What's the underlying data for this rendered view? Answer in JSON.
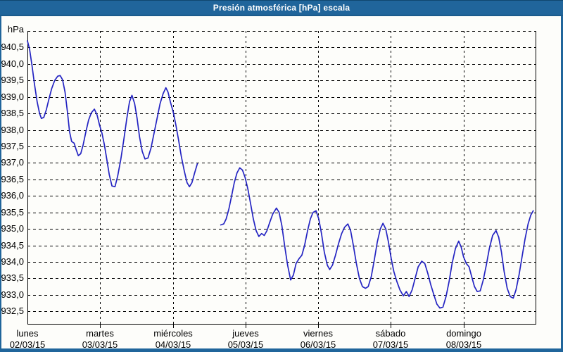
{
  "window": {
    "title": "Presión atmosférica [hPa] escala"
  },
  "colors": {
    "frame_blue": "#20659b",
    "frame_dark_blue": "#10476f",
    "panel_bg": "#fdfdfa",
    "line_blue": "#2424c2",
    "grid_black": "#000000",
    "label_black": "#000000",
    "title_white": "#ffffff"
  },
  "chart_data": {
    "type": "line",
    "title": "Presión atmosférica [hPa] escala",
    "y_unit_label": "hPa",
    "ylabel": "",
    "xlabel": "",
    "decimal_separator": ",",
    "ylim": [
      932.1,
      941.0
    ],
    "ytick_step": 0.5,
    "ytick_labels": [
      "940,5",
      "940,0",
      "939,5",
      "939,0",
      "938,5",
      "938,0",
      "937,5",
      "937,0",
      "936,5",
      "936,0",
      "935,5",
      "935,0",
      "934,5",
      "934,0",
      "933,5",
      "933,0",
      "932,5"
    ],
    "ytick_values": [
      940.5,
      940.0,
      939.5,
      939.0,
      938.5,
      938.0,
      937.5,
      937.0,
      936.5,
      936.0,
      935.5,
      935.0,
      934.5,
      934.0,
      933.5,
      933.0,
      932.5
    ],
    "top_gridline_value": 941.0,
    "grid": "dashed",
    "legend_position": "none",
    "x_total_hours": 168,
    "x_days": [
      {
        "name": "lunes",
        "date": "02/03/15",
        "hour": 0
      },
      {
        "name": "martes",
        "date": "03/03/15",
        "hour": 24
      },
      {
        "name": "miércoles",
        "date": "04/03/15",
        "hour": 48
      },
      {
        "name": "jueves",
        "date": "05/03/15",
        "hour": 72
      },
      {
        "name": "viernes",
        "date": "06/03/15",
        "hour": 96
      },
      {
        "name": "sábado",
        "date": "07/03/15",
        "hour": 120
      },
      {
        "name": "domingo",
        "date": "08/03/15",
        "hour": 144
      }
    ],
    "series": [
      {
        "name": "Presión atmosférica [hPa]",
        "color": "#2424c2",
        "gap_note": "data gap between hour 56 and hour 64 (Wed evening to early Thu)",
        "segments": [
          [
            [
              0,
              940.7
            ],
            [
              0.7,
              940.45
            ],
            [
              1.5,
              939.95
            ],
            [
              2.3,
              939.4
            ],
            [
              3.2,
              938.85
            ],
            [
              4,
              938.5
            ],
            [
              4.6,
              938.35
            ],
            [
              5.4,
              938.38
            ],
            [
              6.2,
              938.6
            ],
            [
              7,
              938.9
            ],
            [
              8,
              939.25
            ],
            [
              9,
              939.5
            ],
            [
              10,
              939.63
            ],
            [
              10.8,
              939.65
            ],
            [
              11.6,
              939.52
            ],
            [
              12.4,
              939.15
            ],
            [
              13.2,
              938.55
            ],
            [
              13.9,
              937.95
            ],
            [
              14.6,
              937.65
            ],
            [
              15.4,
              937.6
            ],
            [
              16.1,
              937.4
            ],
            [
              16.8,
              937.22
            ],
            [
              17.6,
              937.28
            ],
            [
              18.4,
              937.55
            ],
            [
              19.3,
              937.95
            ],
            [
              20.2,
              938.3
            ],
            [
              21.1,
              938.52
            ],
            [
              22.1,
              938.63
            ],
            [
              23,
              938.45
            ],
            [
              23.8,
              938.15
            ],
            [
              24.6,
              937.9
            ],
            [
              25.4,
              937.55
            ],
            [
              26.2,
              937.1
            ],
            [
              27,
              936.65
            ],
            [
              27.9,
              936.3
            ],
            [
              28.9,
              936.28
            ],
            [
              29.8,
              936.6
            ],
            [
              30.8,
              937.1
            ],
            [
              31.8,
              937.7
            ],
            [
              32.8,
              938.35
            ],
            [
              33.7,
              938.85
            ],
            [
              34.5,
              939.05
            ],
            [
              35.4,
              938.8
            ],
            [
              36.2,
              938.35
            ],
            [
              37,
              937.8
            ],
            [
              37.9,
              937.35
            ],
            [
              38.8,
              937.12
            ],
            [
              39.8,
              937.15
            ],
            [
              40.8,
              937.45
            ],
            [
              41.8,
              937.9
            ],
            [
              42.8,
              938.35
            ],
            [
              43.8,
              938.8
            ],
            [
              44.8,
              939.1
            ],
            [
              45.7,
              939.28
            ],
            [
              46.4,
              939.15
            ],
            [
              47.2,
              938.85
            ],
            [
              48.2,
              938.52
            ],
            [
              49,
              938.15
            ],
            [
              49.9,
              937.7
            ],
            [
              50.8,
              937.2
            ],
            [
              51.8,
              936.75
            ],
            [
              52.7,
              936.4
            ],
            [
              53.5,
              936.28
            ],
            [
              54.3,
              936.4
            ],
            [
              55.2,
              936.7
            ],
            [
              56.1,
              936.97
            ]
          ],
          [
            [
              63.8,
              935.12
            ],
            [
              64.8,
              935.15
            ],
            [
              65.6,
              935.3
            ],
            [
              66.5,
              935.6
            ],
            [
              67.4,
              936.0
            ],
            [
              68.3,
              936.4
            ],
            [
              69.2,
              936.7
            ],
            [
              70.1,
              936.85
            ],
            [
              71,
              936.78
            ],
            [
              71.9,
              936.55
            ],
            [
              72.8,
              936.2
            ],
            [
              73.7,
              935.75
            ],
            [
              74.6,
              935.3
            ],
            [
              75.5,
              934.95
            ],
            [
              76.4,
              934.77
            ],
            [
              77.3,
              934.86
            ],
            [
              78.2,
              934.8
            ],
            [
              79.1,
              934.95
            ],
            [
              80,
              935.2
            ],
            [
              81,
              935.45
            ],
            [
              82.2,
              935.63
            ],
            [
              83.1,
              935.5
            ],
            [
              84,
              935.1
            ],
            [
              84.9,
              934.5
            ],
            [
              85.9,
              933.9
            ],
            [
              86.9,
              933.45
            ],
            [
              87.8,
              933.6
            ],
            [
              88.7,
              933.95
            ],
            [
              89.7,
              934.1
            ],
            [
              90.6,
              934.2
            ],
            [
              91.5,
              934.5
            ],
            [
              92.5,
              934.95
            ],
            [
              93.4,
              935.3
            ],
            [
              94.3,
              935.5
            ],
            [
              95.3,
              935.55
            ],
            [
              96.2,
              935.3
            ],
            [
              97.1,
              934.85
            ],
            [
              98,
              934.3
            ],
            [
              99,
              933.9
            ],
            [
              99.8,
              933.77
            ],
            [
              100.7,
              933.9
            ],
            [
              101.7,
              934.2
            ],
            [
              102.7,
              934.55
            ],
            [
              103.7,
              934.85
            ],
            [
              104.7,
              935.05
            ],
            [
              105.8,
              935.15
            ],
            [
              106.7,
              934.95
            ],
            [
              107.6,
              934.5
            ],
            [
              108.6,
              933.95
            ],
            [
              109.6,
              933.5
            ],
            [
              110.6,
              933.25
            ],
            [
              111.6,
              933.2
            ],
            [
              112.5,
              933.25
            ],
            [
              113.5,
              933.55
            ],
            [
              114.5,
              934.05
            ],
            [
              115.5,
              934.6
            ],
            [
              116.5,
              935.0
            ],
            [
              117.4,
              935.17
            ],
            [
              118.3,
              935.0
            ],
            [
              119.2,
              934.6
            ],
            [
              120.1,
              934.1
            ],
            [
              121,
              933.7
            ],
            [
              122,
              933.4
            ],
            [
              123,
              933.15
            ],
            [
              124.1,
              932.97
            ],
            [
              125.1,
              933.1
            ],
            [
              126,
              932.95
            ],
            [
              127,
              933.15
            ],
            [
              128,
              933.5
            ],
            [
              129,
              933.85
            ],
            [
              130.2,
              934.02
            ],
            [
              131.2,
              933.95
            ],
            [
              132.2,
              933.65
            ],
            [
              133.2,
              933.3
            ],
            [
              134.2,
              933.0
            ],
            [
              135.2,
              932.72
            ],
            [
              136.2,
              932.6
            ],
            [
              137.2,
              932.63
            ],
            [
              138.2,
              932.95
            ],
            [
              139.2,
              933.4
            ],
            [
              140.2,
              933.95
            ],
            [
              141.3,
              934.4
            ],
            [
              142.4,
              934.63
            ],
            [
              143.2,
              934.45
            ],
            [
              144,
              934.15
            ],
            [
              144.9,
              933.95
            ],
            [
              145.8,
              933.85
            ],
            [
              146.7,
              933.55
            ],
            [
              147.6,
              933.25
            ],
            [
              148.5,
              933.1
            ],
            [
              149.5,
              933.12
            ],
            [
              150.5,
              933.45
            ],
            [
              151.5,
              933.9
            ],
            [
              152.5,
              934.4
            ],
            [
              153.6,
              934.8
            ],
            [
              154.7,
              934.95
            ],
            [
              155.6,
              934.75
            ],
            [
              156.5,
              934.3
            ],
            [
              157.4,
              933.7
            ],
            [
              158.4,
              933.2
            ],
            [
              159.4,
              932.95
            ],
            [
              160.4,
              932.9
            ],
            [
              161.3,
              933.15
            ],
            [
              162.3,
              933.6
            ],
            [
              163.3,
              934.15
            ],
            [
              164.3,
              934.7
            ],
            [
              165.3,
              935.15
            ],
            [
              166.2,
              935.42
            ],
            [
              167,
              935.55
            ]
          ]
        ]
      }
    ]
  }
}
